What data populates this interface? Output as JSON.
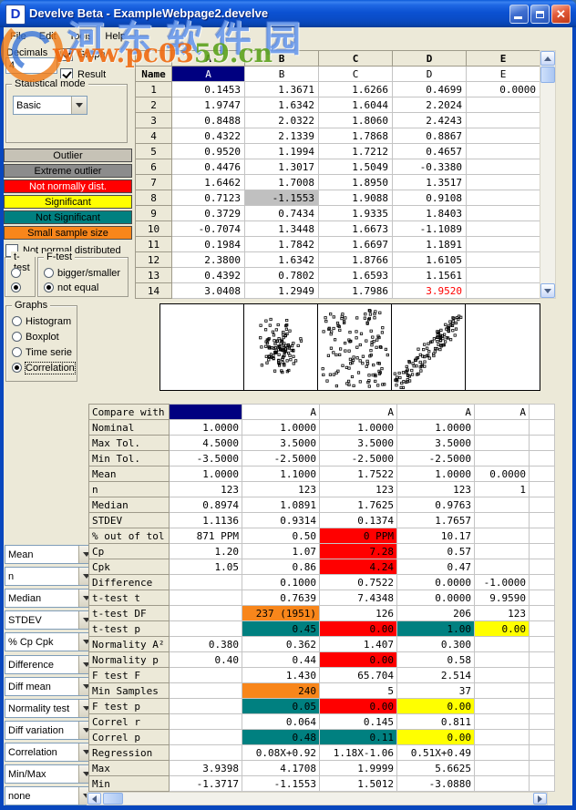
{
  "window": {
    "title": "Develve Beta - ExampleWebpage2.develve",
    "icon_letter": "D",
    "close_glyph": "✕"
  },
  "menu": {
    "items": [
      "File",
      "Edit",
      "Tools",
      "Help"
    ]
  },
  "watermark": {
    "site_name_cn": "河东软件园",
    "url_left": "www.pc03",
    "url_right": "59.cn"
  },
  "sidebar": {
    "decimals_label": "Decimals",
    "decimals_value": "4",
    "graph_label": "Graph",
    "result_label": "Result",
    "stat_mode_label": "Statistical mode",
    "stat_mode_value": "Basic",
    "legend": [
      {
        "label": "Outlier",
        "bg": "#C6C2B6",
        "fg": "#000000"
      },
      {
        "label": "Extreme outlier",
        "bg": "#8C8C8C",
        "fg": "#000000"
      },
      {
        "label": "Not normally dist.",
        "bg": "#FF0000",
        "fg": "#FFFFFF"
      },
      {
        "label": "Significant",
        "bg": "#FFFF00",
        "fg": "#000000"
      },
      {
        "label": "Not Significant",
        "bg": "#008080",
        "fg": "#000000"
      },
      {
        "label": "Small sample size",
        "bg": "#F8861B",
        "fg": "#000000"
      }
    ],
    "not_normal_label": "Not normal distributed",
    "t_test": {
      "label": "t-test",
      "options": [
        {
          "label": "",
          "selected": false
        },
        {
          "label": "",
          "selected": true
        }
      ]
    },
    "f_test": {
      "label": "F-test",
      "options": [
        {
          "label": "bigger/smaller",
          "selected": false
        },
        {
          "label": "not equal",
          "selected": true
        }
      ]
    },
    "graphs": {
      "label": "Graphs",
      "options": [
        {
          "label": "Histogram",
          "selected": false
        },
        {
          "label": "Boxplot",
          "selected": false
        },
        {
          "label": "Time serie",
          "selected": false
        },
        {
          "label": "Correlation",
          "selected": true
        }
      ]
    },
    "dropdowns": [
      "Mean",
      "n",
      "Median",
      "STDEV",
      "% Cp Cpk",
      "Difference",
      "Diff mean",
      "Normality test",
      "Diff variation",
      "Correlation",
      "Min/Max",
      "none"
    ]
  },
  "data_grid": {
    "column_headers": [
      "A",
      "B",
      "C",
      "D",
      "E"
    ],
    "name_label": "Name",
    "name_row": [
      "A",
      "B",
      "C",
      "D",
      "E"
    ],
    "selected_column": "A",
    "rows": [
      {
        "num": "1",
        "values": [
          "0.1453",
          "1.3671",
          "1.6266",
          "0.4699",
          "0.0000"
        ]
      },
      {
        "num": "2",
        "values": [
          "1.9747",
          "1.6342",
          "1.6044",
          "2.2024",
          ""
        ]
      },
      {
        "num": "3",
        "values": [
          "0.8488",
          "2.0322",
          "1.8060",
          "2.4243",
          ""
        ]
      },
      {
        "num": "4",
        "values": [
          "0.4322",
          "2.1339",
          "1.7868",
          "0.8867",
          ""
        ]
      },
      {
        "num": "5",
        "values": [
          "0.9520",
          "1.1994",
          "1.7212",
          "0.4657",
          ""
        ]
      },
      {
        "num": "6",
        "values": [
          "0.4476",
          "1.3017",
          "1.5049",
          "-0.3380",
          ""
        ]
      },
      {
        "num": "7",
        "values": [
          "1.6462",
          "1.7008",
          "1.8950",
          "1.3517",
          ""
        ]
      },
      {
        "num": "8",
        "values": [
          "0.7123",
          "-1.1553",
          "1.9088",
          "0.9108",
          ""
        ]
      },
      {
        "num": "9",
        "values": [
          "0.3729",
          "0.7434",
          "1.9335",
          "1.8403",
          ""
        ]
      },
      {
        "num": "10",
        "values": [
          "-0.7074",
          "1.3448",
          "1.6673",
          "-1.1089",
          ""
        ]
      },
      {
        "num": "11",
        "values": [
          "0.1984",
          "1.7842",
          "1.6697",
          "1.1891",
          ""
        ]
      },
      {
        "num": "12",
        "values": [
          "2.3800",
          "1.6342",
          "1.8766",
          "1.6105",
          ""
        ]
      },
      {
        "num": "13",
        "values": [
          "0.4392",
          "0.7802",
          "1.6593",
          "1.1561",
          ""
        ]
      },
      {
        "num": "14",
        "values": [
          "3.0408",
          "1.2949",
          "1.7986",
          "3.9520",
          ""
        ]
      }
    ],
    "outlier_cell": {
      "row": "8",
      "column": "B"
    },
    "red_text_cell": {
      "row": "14",
      "column": "D"
    }
  },
  "scatter": {
    "x_axis_column": "A",
    "point_style": "open-square",
    "panels": [
      {
        "column": "A",
        "pattern": "empty",
        "points": 0
      },
      {
        "column": "B",
        "pattern": "random-cluster",
        "points": 115
      },
      {
        "column": "C",
        "pattern": "random-spread",
        "points": 120
      },
      {
        "column": "D",
        "pattern": "positive-correlation",
        "points": 115
      },
      {
        "column": "E",
        "pattern": "empty",
        "points": 0
      }
    ]
  },
  "stats": {
    "header_label": "Compare with",
    "compare_headers": [
      "",
      "A",
      "A",
      "A",
      "A"
    ],
    "rows": [
      {
        "label": "Nominal",
        "cells": [
          {
            "v": "1.0000"
          },
          {
            "v": "1.0000"
          },
          {
            "v": "1.0000"
          },
          {
            "v": "1.0000"
          },
          {}
        ]
      },
      {
        "label": "Max Tol.",
        "cells": [
          {
            "v": "4.5000"
          },
          {
            "v": "3.5000"
          },
          {
            "v": "3.5000"
          },
          {
            "v": "3.5000"
          },
          {}
        ]
      },
      {
        "label": "Min Tol.",
        "cells": [
          {
            "v": "-3.5000"
          },
          {
            "v": "-2.5000"
          },
          {
            "v": "-2.5000"
          },
          {
            "v": "-2.5000"
          },
          {}
        ]
      },
      {
        "label": "Mean",
        "cells": [
          {
            "v": "1.0000"
          },
          {
            "v": "1.1000"
          },
          {
            "v": "1.7522"
          },
          {
            "v": "1.0000"
          },
          {
            "v": "0.0000"
          }
        ]
      },
      {
        "label": "n",
        "cells": [
          {
            "v": "123"
          },
          {
            "v": "123"
          },
          {
            "v": "123"
          },
          {
            "v": "123"
          },
          {
            "v": "1"
          }
        ]
      },
      {
        "label": "Median",
        "cells": [
          {
            "v": "0.8974"
          },
          {
            "v": "1.0891"
          },
          {
            "v": "1.7625"
          },
          {
            "v": "0.9763"
          },
          {}
        ]
      },
      {
        "label": "STDEV",
        "cells": [
          {
            "v": "1.1136"
          },
          {
            "v": "0.9314"
          },
          {
            "v": "0.1374"
          },
          {
            "v": "1.7657"
          },
          {}
        ]
      },
      {
        "label": "% out of tol",
        "cells": [
          {
            "v": "871 PPM"
          },
          {
            "v": "0.50"
          },
          {
            "v": "0 PPM",
            "bg": "red"
          },
          {
            "v": "10.17"
          },
          {}
        ]
      },
      {
        "label": "Cp",
        "cells": [
          {
            "v": "1.20"
          },
          {
            "v": "1.07"
          },
          {
            "v": "7.28",
            "bg": "red"
          },
          {
            "v": "0.57"
          },
          {}
        ]
      },
      {
        "label": "Cpk",
        "cells": [
          {
            "v": "1.05"
          },
          {
            "v": "0.86"
          },
          {
            "v": "4.24",
            "bg": "red"
          },
          {
            "v": "0.47"
          },
          {}
        ]
      },
      {
        "label": "Difference",
        "cells": [
          {},
          {
            "v": "0.1000"
          },
          {
            "v": "0.7522"
          },
          {
            "v": "0.0000"
          },
          {
            "v": "-1.0000"
          }
        ]
      },
      {
        "label": "t-test t",
        "cells": [
          {},
          {
            "v": "0.7639"
          },
          {
            "v": "7.4348"
          },
          {
            "v": "0.0000"
          },
          {
            "v": "9.9590"
          }
        ]
      },
      {
        "label": "t-test DF",
        "cells": [
          {},
          {
            "v": "237 (1951)",
            "bg": "orange"
          },
          {
            "v": "126"
          },
          {
            "v": "206"
          },
          {
            "v": "123"
          }
        ]
      },
      {
        "label": "t-test p",
        "cells": [
          {},
          {
            "v": "0.45",
            "bg": "teal"
          },
          {
            "v": "0.00",
            "bg": "red"
          },
          {
            "v": "1.00",
            "bg": "teal"
          },
          {
            "v": "0.00",
            "bg": "yellow"
          }
        ]
      },
      {
        "label": "Normality A²",
        "cells": [
          {
            "v": "0.380"
          },
          {
            "v": "0.362"
          },
          {
            "v": "1.407"
          },
          {
            "v": "0.300"
          },
          {}
        ]
      },
      {
        "label": "Normality p",
        "cells": [
          {
            "v": "0.40"
          },
          {
            "v": "0.44"
          },
          {
            "v": "0.00",
            "bg": "red"
          },
          {
            "v": "0.58"
          },
          {}
        ]
      },
      {
        "label": "F test F",
        "cells": [
          {},
          {
            "v": "1.430"
          },
          {
            "v": "65.704"
          },
          {
            "v": "2.514"
          },
          {}
        ]
      },
      {
        "label": "Min Samples",
        "cells": [
          {},
          {
            "v": "240",
            "bg": "orange"
          },
          {
            "v": "5"
          },
          {
            "v": "37"
          },
          {}
        ]
      },
      {
        "label": "F test p",
        "cells": [
          {},
          {
            "v": "0.05",
            "bg": "teal"
          },
          {
            "v": "0.00",
            "bg": "red"
          },
          {
            "v": "0.00",
            "bg": "yellow"
          },
          {}
        ]
      },
      {
        "label": "Correl r",
        "cells": [
          {},
          {
            "v": "0.064"
          },
          {
            "v": "0.145"
          },
          {
            "v": "0.811"
          },
          {}
        ]
      },
      {
        "label": "Correl p",
        "cells": [
          {},
          {
            "v": "0.48",
            "bg": "teal"
          },
          {
            "v": "0.11",
            "bg": "teal"
          },
          {
            "v": "0.00",
            "bg": "yellow"
          },
          {}
        ]
      },
      {
        "label": "Regression",
        "cells": [
          {},
          {
            "v": "0.08X+0.92"
          },
          {
            "v": "1.18X-1.06"
          },
          {
            "v": "0.51X+0.49"
          },
          {}
        ]
      },
      {
        "label": "Max",
        "cells": [
          {
            "v": "3.9398"
          },
          {
            "v": "4.1708"
          },
          {
            "v": "1.9999"
          },
          {
            "v": "5.6625"
          },
          {}
        ]
      },
      {
        "label": "Min",
        "cells": [
          {
            "v": "-1.3717"
          },
          {
            "v": "-1.1553"
          },
          {
            "v": "1.5012"
          },
          {
            "v": "-3.0880"
          },
          {}
        ]
      }
    ]
  },
  "colors": {
    "selection_navy": "#000080",
    "status_red": "#FF0000",
    "status_yellow": "#FFFF00",
    "status_teal": "#008080",
    "status_orange": "#F8861B",
    "outlier_gray": "#C0C0C0",
    "titlebar_blue": "#0B51D2",
    "window_bg": "#ECE9D8"
  }
}
